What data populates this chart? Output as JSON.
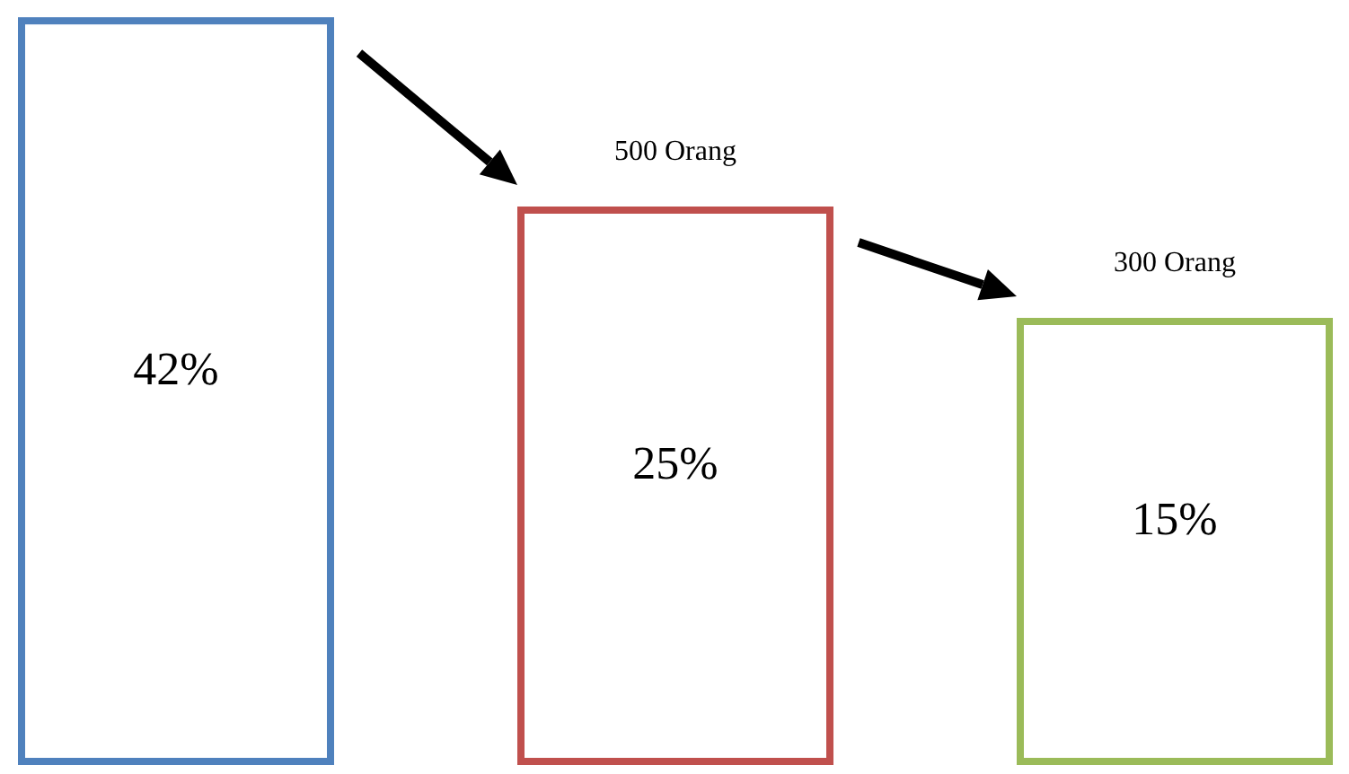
{
  "chart_data": {
    "type": "other",
    "categories": [
      null,
      null,
      null
    ],
    "values": [
      42,
      25,
      15
    ],
    "value_labels": [
      "42%",
      "25%",
      "15%"
    ],
    "colors": [
      "#4f81bd",
      "#c0504d",
      "#9bbb59"
    ],
    "annotations": [
      "500 Orang",
      "300 Orang"
    ]
  }
}
